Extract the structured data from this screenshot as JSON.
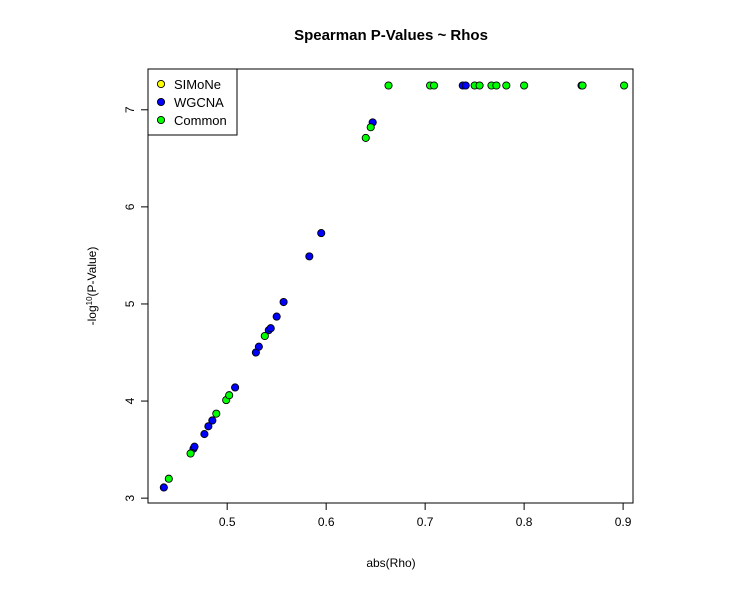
{
  "chart_data": {
    "type": "scatter",
    "title": "Spearman P-Values ~ Rhos",
    "xlabel": "abs(Rho)",
    "ylabel": "-log10(P-Value)",
    "xlim": [
      0.42,
      0.91
    ],
    "ylim": [
      2.95,
      7.42
    ],
    "xticks": [
      0.5,
      0.6,
      0.7,
      0.8,
      0.9
    ],
    "xtick_labels": [
      "0.5",
      "0.6",
      "0.7",
      "0.8",
      "0.9"
    ],
    "yticks": [
      3,
      4,
      5,
      6,
      7
    ],
    "ytick_labels": [
      "3",
      "4",
      "5",
      "6",
      "7"
    ],
    "grid": false,
    "legend": {
      "position": "top-left",
      "entries": [
        {
          "label": "SIMoNe",
          "color": "#FFFF00"
        },
        {
          "label": "WGCNA",
          "color": "#0000FF"
        },
        {
          "label": "Common",
          "color": "#00FF00"
        }
      ]
    },
    "series": [
      {
        "name": "WGCNA",
        "color": "#0000FF",
        "points": [
          {
            "x": 0.436,
            "y": 3.11
          },
          {
            "x": 0.466,
            "y": 3.51
          },
          {
            "x": 0.467,
            "y": 3.53
          },
          {
            "x": 0.477,
            "y": 3.66
          },
          {
            "x": 0.481,
            "y": 3.74
          },
          {
            "x": 0.485,
            "y": 3.8
          },
          {
            "x": 0.508,
            "y": 4.14
          },
          {
            "x": 0.529,
            "y": 4.5
          },
          {
            "x": 0.532,
            "y": 4.56
          },
          {
            "x": 0.542,
            "y": 4.73
          },
          {
            "x": 0.544,
            "y": 4.75
          },
          {
            "x": 0.55,
            "y": 4.87
          },
          {
            "x": 0.557,
            "y": 5.02
          },
          {
            "x": 0.583,
            "y": 5.49
          },
          {
            "x": 0.595,
            "y": 5.73
          },
          {
            "x": 0.647,
            "y": 6.87
          },
          {
            "x": 0.738,
            "y": 7.25
          },
          {
            "x": 0.741,
            "y": 7.25
          },
          {
            "x": 0.858,
            "y": 7.25
          }
        ]
      },
      {
        "name": "Common",
        "color": "#00FF00",
        "points": [
          {
            "x": 0.441,
            "y": 3.2
          },
          {
            "x": 0.463,
            "y": 3.46
          },
          {
            "x": 0.489,
            "y": 3.87
          },
          {
            "x": 0.499,
            "y": 4.01
          },
          {
            "x": 0.502,
            "y": 4.06
          },
          {
            "x": 0.538,
            "y": 4.67
          },
          {
            "x": 0.64,
            "y": 6.71
          },
          {
            "x": 0.645,
            "y": 6.82
          },
          {
            "x": 0.663,
            "y": 7.25
          },
          {
            "x": 0.705,
            "y": 7.25
          },
          {
            "x": 0.709,
            "y": 7.25
          },
          {
            "x": 0.75,
            "y": 7.25
          },
          {
            "x": 0.755,
            "y": 7.25
          },
          {
            "x": 0.767,
            "y": 7.25
          },
          {
            "x": 0.772,
            "y": 7.25
          },
          {
            "x": 0.782,
            "y": 7.25
          },
          {
            "x": 0.8,
            "y": 7.25
          },
          {
            "x": 0.859,
            "y": 7.25
          },
          {
            "x": 0.901,
            "y": 7.25
          }
        ]
      }
    ]
  }
}
